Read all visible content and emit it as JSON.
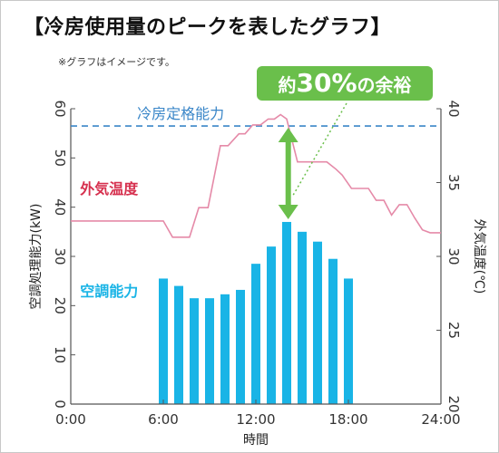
{
  "header": {
    "title": "【冷房使用量のピークを表したグラフ】",
    "note": "※グラフはイメージです。"
  },
  "colors": {
    "bar": "#19b4e6",
    "temp_line": "#e58aa8",
    "rated_line": "#3a86c8",
    "temp_label": "#d6304e",
    "bar_label": "#19b4e6",
    "callout": "#6abf4b",
    "arrow": "#6abf4b"
  },
  "chart_data": {
    "type": "bar",
    "title": "冷房使用量のピークを表したグラフ",
    "xlabel": "時間",
    "ylabel": "空調処理能力(kW)",
    "y2label": "外気温度(℃)",
    "xlim": [
      0,
      24
    ],
    "ylim": [
      0,
      60
    ],
    "y2lim": [
      20,
      40
    ],
    "x_ticks": [
      "0:00",
      "6:00",
      "12:00",
      "18:00",
      "24:00"
    ],
    "x_tick_values": [
      0,
      6,
      12,
      18,
      24
    ],
    "y_ticks": [
      0,
      10,
      20,
      30,
      40,
      50,
      60
    ],
    "y2_ticks": [
      20,
      25,
      30,
      35,
      40
    ],
    "grid": false,
    "series": [
      {
        "name": "空調能力",
        "kind": "bar",
        "axis": "left",
        "x": [
          6,
          7,
          8,
          9,
          10,
          11,
          12,
          13,
          14,
          15,
          16,
          17,
          18
        ],
        "values": [
          25.5,
          24,
          21.5,
          21.5,
          22.3,
          23.2,
          28.5,
          32,
          37,
          35,
          33,
          29.5,
          25.5
        ]
      },
      {
        "name": "外気温度",
        "kind": "line",
        "axis": "right",
        "x": [
          0,
          1,
          2,
          3,
          4,
          5,
          6,
          6.6,
          7.7,
          8.3,
          8.9,
          9.7,
          10.2,
          10.9,
          11.3,
          11.8,
          12.3,
          12.8,
          13.2,
          13.6,
          14,
          14.7,
          15.4,
          16,
          16.6,
          17.2,
          17.6,
          18.2,
          18.7,
          19.3,
          19.8,
          20.3,
          20.8,
          21.3,
          21.8,
          22.3,
          22.8,
          23.3,
          24
        ],
        "values": [
          32.4,
          32.4,
          32.4,
          32.4,
          32.4,
          32.4,
          32.4,
          31.3,
          31.3,
          33.3,
          33.3,
          37.5,
          37.5,
          38.3,
          38.3,
          38.9,
          38.9,
          39.3,
          39.3,
          39.6,
          39.3,
          36.4,
          36.4,
          36.4,
          36.4,
          35.9,
          35.5,
          34.6,
          34.6,
          34.6,
          33.8,
          33.8,
          32.8,
          33.5,
          33.5,
          32.6,
          31.8,
          31.6,
          31.6
        ]
      },
      {
        "name": "冷房定格能力",
        "kind": "hline",
        "axis": "left",
        "y": 56.5
      }
    ],
    "annotations": [
      {
        "text": "約30%の余裕",
        "type": "callout"
      }
    ]
  }
}
